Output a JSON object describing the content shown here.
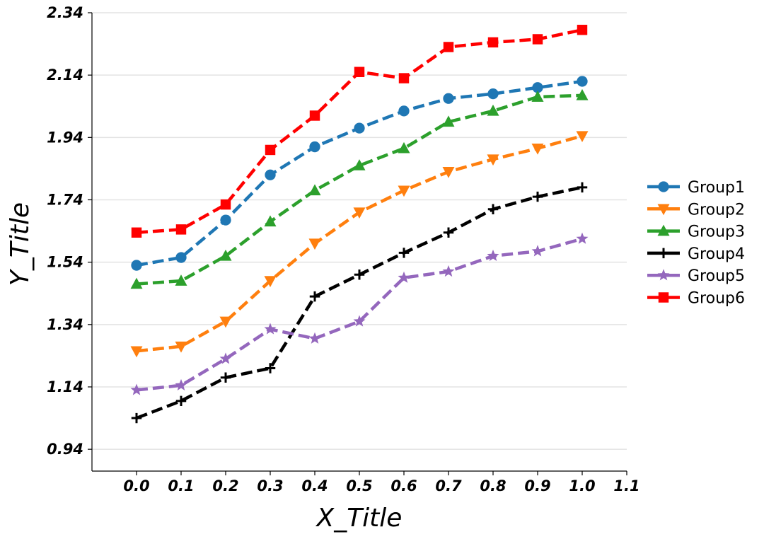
{
  "chart_data": {
    "type": "line",
    "xlabel": "X_Title",
    "ylabel": "Y_Title",
    "x": [
      0.0,
      0.1,
      0.2,
      0.3,
      0.4,
      0.5,
      0.6,
      0.7,
      0.8,
      0.9,
      1.0
    ],
    "x_ticks": [
      "0.0",
      "0.1",
      "0.2",
      "0.3",
      "0.4",
      "0.5",
      "0.6",
      "0.7",
      "0.8",
      "0.9",
      "1.0",
      "1.1"
    ],
    "y_ticks": [
      "0.94",
      "1.14",
      "1.34",
      "1.54",
      "1.74",
      "1.94",
      "2.14",
      "2.34"
    ],
    "xlim": [
      -0.1,
      1.1
    ],
    "ylim": [
      0.87,
      2.34
    ],
    "grid": "horizontal",
    "legend_position": "right",
    "series": [
      {
        "name": "Group1",
        "color": "#1f77b4",
        "marker": "circle",
        "values": [
          1.53,
          1.555,
          1.675,
          1.82,
          1.91,
          1.97,
          2.025,
          2.065,
          2.08,
          2.1,
          2.12
        ]
      },
      {
        "name": "Group2",
        "color": "#ff7f0e",
        "marker": "triangle-down",
        "values": [
          1.255,
          1.27,
          1.35,
          1.48,
          1.6,
          1.7,
          1.77,
          1.83,
          1.87,
          1.905,
          1.945
        ]
      },
      {
        "name": "Group3",
        "color": "#2ca02c",
        "marker": "triangle-up",
        "values": [
          1.47,
          1.48,
          1.56,
          1.67,
          1.77,
          1.85,
          1.905,
          1.99,
          2.025,
          2.07,
          2.075
        ]
      },
      {
        "name": "Group4",
        "color": "#000000",
        "marker": "plus",
        "values": [
          1.04,
          1.095,
          1.17,
          1.2,
          1.43,
          1.5,
          1.57,
          1.635,
          1.71,
          1.75,
          1.78
        ]
      },
      {
        "name": "Group5",
        "color": "#9467bd",
        "marker": "star",
        "values": [
          1.13,
          1.145,
          1.23,
          1.325,
          1.295,
          1.35,
          1.49,
          1.51,
          1.56,
          1.575,
          1.615
        ]
      },
      {
        "name": "Group6",
        "color": "#ff0000",
        "marker": "square",
        "values": [
          1.635,
          1.645,
          1.725,
          1.9,
          2.01,
          2.15,
          2.13,
          2.23,
          2.245,
          2.255,
          2.285
        ]
      }
    ]
  }
}
